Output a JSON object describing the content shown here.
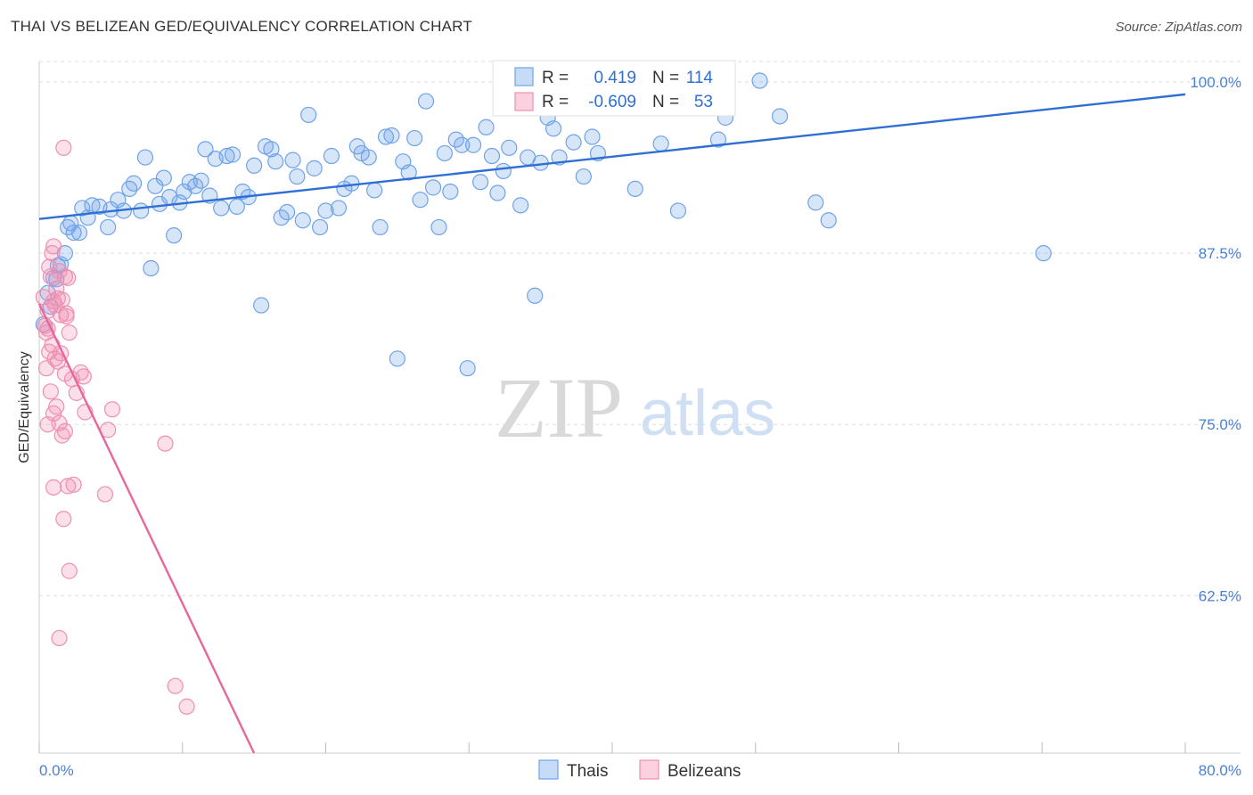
{
  "title": "THAI VS BELIZEAN GED/EQUIVALENCY CORRELATION CHART",
  "source": "Source: ZipAtlas.com",
  "watermark": {
    "zip": "ZIP",
    "atlas": "atlas"
  },
  "legend": {
    "r_label": "R =",
    "n_label": "N =",
    "items": [
      {
        "name": "Thais",
        "r": "0.419",
        "n": "114",
        "color": "#6fa3e8"
      },
      {
        "name": "Belizeans",
        "r": "-0.609",
        "n": "53",
        "color": "#f08fb0"
      }
    ]
  },
  "chart_data": {
    "type": "scatter",
    "title": "THAI VS BELIZEAN GED/EQUIVALENCY CORRELATION CHART",
    "xlabel": "",
    "ylabel": "GED/Equivalency",
    "xlim": [
      0,
      80
    ],
    "ylim": [
      51,
      101.5
    ],
    "x_tick_labels": [
      "0.0%",
      "80.0%"
    ],
    "y_ticks": [
      62.5,
      75.0,
      87.5,
      100.0
    ],
    "y_tick_labels": [
      "62.5%",
      "75.0%",
      "87.5%",
      "100.0%"
    ],
    "grid": true,
    "legend_position": "top-center",
    "series": [
      {
        "name": "Thais",
        "color": "#6fa3e8",
        "trend": {
          "x": [
            0,
            80
          ],
          "y": [
            90.0,
            99.1
          ]
        },
        "points": [
          [
            0.3,
            82.3
          ],
          [
            0.6,
            84.6
          ],
          [
            1.0,
            85.7
          ],
          [
            1.5,
            86.7
          ],
          [
            1.8,
            87.5
          ],
          [
            2.2,
            89.7
          ],
          [
            2.4,
            89.0
          ],
          [
            3.0,
            90.8
          ],
          [
            3.4,
            90.1
          ],
          [
            3.7,
            91.0
          ],
          [
            4.2,
            90.9
          ],
          [
            4.8,
            89.4
          ],
          [
            5.0,
            90.7
          ],
          [
            5.5,
            91.4
          ],
          [
            5.9,
            90.6
          ],
          [
            6.3,
            92.2
          ],
          [
            6.6,
            92.6
          ],
          [
            7.1,
            90.6
          ],
          [
            7.4,
            94.5
          ],
          [
            7.8,
            86.4
          ],
          [
            8.1,
            92.4
          ],
          [
            8.4,
            91.1
          ],
          [
            8.7,
            93.0
          ],
          [
            9.1,
            91.6
          ],
          [
            9.4,
            88.8
          ],
          [
            9.8,
            91.2
          ],
          [
            10.1,
            92.0
          ],
          [
            10.5,
            92.7
          ],
          [
            10.9,
            92.4
          ],
          [
            11.3,
            92.8
          ],
          [
            11.6,
            95.1
          ],
          [
            11.9,
            91.7
          ],
          [
            12.3,
            94.4
          ],
          [
            12.7,
            90.8
          ],
          [
            13.1,
            94.6
          ],
          [
            13.5,
            94.7
          ],
          [
            13.8,
            90.9
          ],
          [
            14.2,
            92.0
          ],
          [
            14.6,
            91.6
          ],
          [
            15.0,
            93.9
          ],
          [
            15.5,
            83.7
          ],
          [
            15.8,
            95.3
          ],
          [
            16.2,
            95.1
          ],
          [
            16.5,
            94.2
          ],
          [
            16.9,
            90.1
          ],
          [
            17.3,
            90.5
          ],
          [
            17.7,
            94.3
          ],
          [
            18.0,
            93.1
          ],
          [
            18.4,
            89.9
          ],
          [
            18.8,
            97.6
          ],
          [
            19.2,
            93.7
          ],
          [
            19.6,
            89.4
          ],
          [
            20.0,
            90.6
          ],
          [
            20.4,
            94.6
          ],
          [
            20.9,
            90.8
          ],
          [
            21.3,
            92.2
          ],
          [
            21.8,
            92.6
          ],
          [
            22.2,
            95.3
          ],
          [
            22.5,
            94.8
          ],
          [
            23.0,
            94.5
          ],
          [
            23.4,
            92.1
          ],
          [
            23.8,
            89.4
          ],
          [
            24.2,
            96.0
          ],
          [
            24.6,
            96.1
          ],
          [
            25.0,
            79.8
          ],
          [
            25.4,
            94.2
          ],
          [
            25.8,
            93.4
          ],
          [
            26.2,
            95.9
          ],
          [
            26.6,
            91.4
          ],
          [
            27.0,
            98.6
          ],
          [
            27.5,
            92.3
          ],
          [
            27.9,
            89.4
          ],
          [
            28.3,
            94.8
          ],
          [
            28.7,
            92.0
          ],
          [
            29.1,
            95.8
          ],
          [
            29.5,
            95.4
          ],
          [
            29.9,
            79.1
          ],
          [
            30.3,
            95.4
          ],
          [
            30.8,
            92.7
          ],
          [
            31.2,
            96.7
          ],
          [
            31.6,
            94.6
          ],
          [
            32.0,
            91.9
          ],
          [
            32.4,
            93.5
          ],
          [
            32.8,
            95.2
          ],
          [
            33.2,
            98.1
          ],
          [
            33.6,
            91.0
          ],
          [
            34.1,
            94.5
          ],
          [
            34.6,
            84.4
          ],
          [
            35.0,
            94.1
          ],
          [
            35.5,
            97.4
          ],
          [
            35.9,
            96.6
          ],
          [
            36.3,
            94.5
          ],
          [
            36.7,
            98.5
          ],
          [
            37.3,
            95.6
          ],
          [
            38.0,
            93.1
          ],
          [
            38.6,
            96.0
          ],
          [
            39.0,
            94.8
          ],
          [
            40.0,
            98.1
          ],
          [
            41.6,
            92.2
          ],
          [
            43.4,
            95.5
          ],
          [
            44.6,
            90.6
          ],
          [
            47.2,
            98.3
          ],
          [
            47.4,
            95.8
          ],
          [
            47.9,
            97.4
          ],
          [
            50.3,
            100.1
          ],
          [
            51.7,
            97.5
          ],
          [
            54.2,
            91.2
          ],
          [
            55.1,
            89.9
          ],
          [
            70.1,
            87.5
          ],
          [
            1.2,
            85.6
          ],
          [
            2.0,
            89.4
          ],
          [
            0.8,
            83.6
          ],
          [
            1.3,
            86.6
          ],
          [
            2.8,
            89.0
          ]
        ]
      },
      {
        "name": "Belizeans",
        "color": "#f08fb0",
        "trend": {
          "x": [
            0.0,
            15.0
          ],
          "y": [
            83.8,
            51.0
          ]
        },
        "points": [
          [
            0.3,
            84.3
          ],
          [
            0.4,
            82.2
          ],
          [
            0.5,
            81.7
          ],
          [
            0.6,
            83.3
          ],
          [
            0.7,
            86.5
          ],
          [
            0.8,
            85.8
          ],
          [
            0.9,
            87.5
          ],
          [
            1.0,
            84.0
          ],
          [
            1.0,
            88.0
          ],
          [
            1.1,
            83.7
          ],
          [
            1.2,
            84.9
          ],
          [
            1.3,
            84.2
          ],
          [
            1.4,
            86.2
          ],
          [
            1.5,
            83.0
          ],
          [
            1.6,
            84.1
          ],
          [
            1.7,
            95.2
          ],
          [
            1.8,
            85.8
          ],
          [
            1.9,
            82.9
          ],
          [
            2.0,
            85.7
          ],
          [
            2.1,
            81.7
          ],
          [
            0.5,
            79.1
          ],
          [
            0.7,
            80.3
          ],
          [
            0.9,
            80.8
          ],
          [
            1.1,
            79.8
          ],
          [
            1.3,
            79.6
          ],
          [
            1.5,
            80.2
          ],
          [
            1.8,
            78.7
          ],
          [
            2.3,
            78.3
          ],
          [
            2.6,
            77.3
          ],
          [
            2.9,
            78.8
          ],
          [
            3.1,
            78.5
          ],
          [
            0.6,
            75.0
          ],
          [
            0.8,
            77.4
          ],
          [
            1.0,
            75.8
          ],
          [
            1.2,
            76.3
          ],
          [
            1.4,
            75.1
          ],
          [
            1.6,
            74.2
          ],
          [
            1.8,
            74.5
          ],
          [
            3.2,
            75.9
          ],
          [
            4.8,
            74.6
          ],
          [
            5.1,
            76.1
          ],
          [
            8.8,
            73.6
          ],
          [
            1.0,
            70.4
          ],
          [
            2.0,
            70.5
          ],
          [
            2.4,
            70.6
          ],
          [
            4.6,
            69.9
          ],
          [
            1.7,
            68.1
          ],
          [
            2.1,
            64.3
          ],
          [
            1.4,
            59.4
          ],
          [
            9.5,
            55.9
          ],
          [
            10.3,
            54.4
          ],
          [
            0.6,
            82.0
          ],
          [
            1.9,
            83.1
          ]
        ]
      }
    ]
  }
}
